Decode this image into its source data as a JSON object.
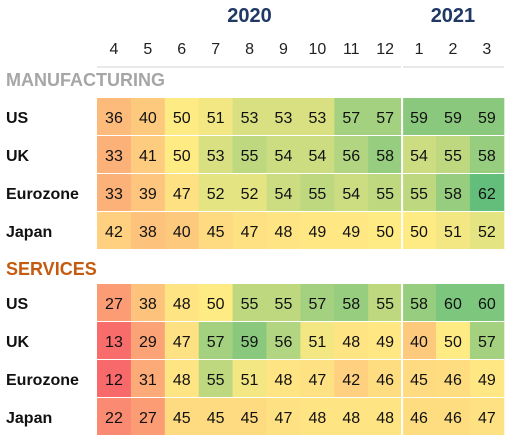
{
  "chart_data": {
    "type": "heatmap",
    "years": [
      {
        "label": "2020",
        "months": [
          "4",
          "5",
          "6",
          "7",
          "8",
          "9",
          "10",
          "11",
          "12"
        ]
      },
      {
        "label": "2021",
        "months": [
          "1",
          "2",
          "3"
        ]
      }
    ],
    "columns": [
      "4",
      "5",
      "6",
      "7",
      "8",
      "9",
      "10",
      "11",
      "12",
      "1",
      "2",
      "3"
    ],
    "color_scale": {
      "low": "#f8696b",
      "mid": "#ffeb84",
      "high": "#63be7b"
    },
    "sections": [
      {
        "title": "MANUFACTURING",
        "title_color": "#a6a6a6",
        "rows": [
          {
            "label": "US",
            "values": [
              36,
              40,
              50,
              51,
              53,
              53,
              53,
              57,
              57,
              59,
              59,
              59
            ]
          },
          {
            "label": "UK",
            "values": [
              33,
              41,
              50,
              53,
              55,
              54,
              54,
              56,
              58,
              54,
              55,
              58
            ]
          },
          {
            "label": "Eurozone",
            "values": [
              33,
              39,
              47,
              52,
              52,
              54,
              55,
              54,
              55,
              55,
              58,
              62
            ]
          },
          {
            "label": "Japan",
            "values": [
              42,
              38,
              40,
              45,
              47,
              48,
              49,
              49,
              50,
              50,
              51,
              52
            ]
          }
        ]
      },
      {
        "title": "SERVICES",
        "title_color": "#c55a11",
        "rows": [
          {
            "label": "US",
            "values": [
              27,
              38,
              48,
              50,
              55,
              55,
              57,
              58,
              55,
              58,
              60,
              60
            ]
          },
          {
            "label": "UK",
            "values": [
              13,
              29,
              47,
              57,
              59,
              56,
              51,
              48,
              49,
              40,
              50,
              57
            ]
          },
          {
            "label": "Eurozone",
            "values": [
              12,
              31,
              48,
              55,
              51,
              48,
              47,
              42,
              46,
              45,
              46,
              49
            ]
          },
          {
            "label": "Japan",
            "values": [
              22,
              27,
              45,
              45,
              45,
              47,
              48,
              48,
              48,
              46,
              46,
              47
            ]
          }
        ]
      }
    ]
  }
}
